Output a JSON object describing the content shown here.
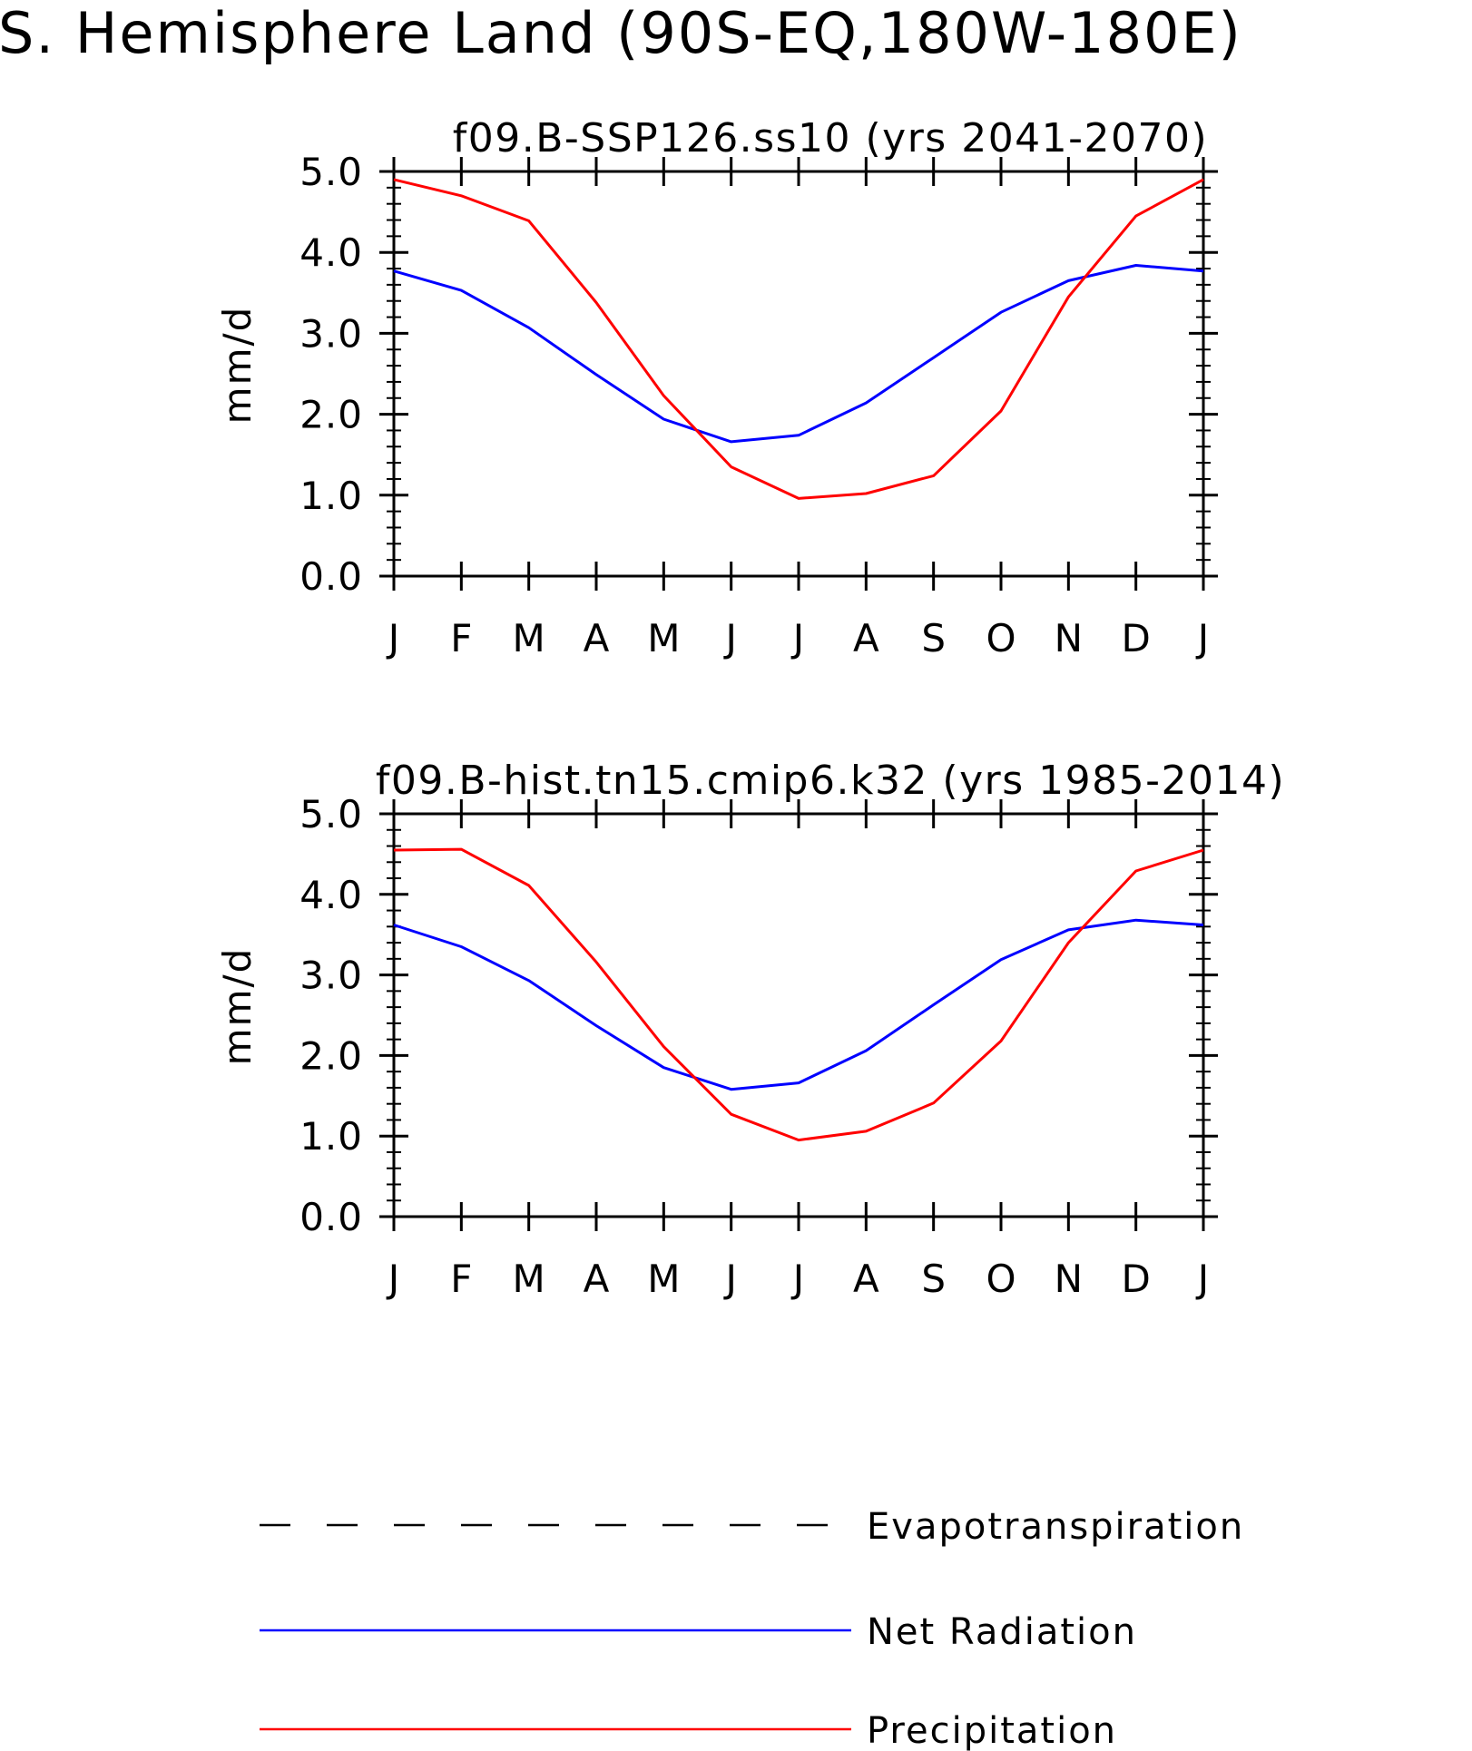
{
  "main_title": "S. Hemisphere Land (90S-EQ,180W-180E)",
  "colors": {
    "net_radiation": "#0000ff",
    "precipitation": "#ff0000",
    "evapotranspiration": "#000000",
    "axis": "#000000"
  },
  "legend": {
    "items": [
      {
        "label": "Evapotranspiration",
        "style": "dashed"
      },
      {
        "label": "Net Radiation",
        "style": "solid"
      },
      {
        "label": "Precipitation",
        "style": "solid"
      }
    ]
  },
  "chart_data": [
    {
      "type": "line",
      "title": "f09.B-SSP126.ss10 (yrs 2041-2070)",
      "ylabel": "mm/d",
      "xlabel": "",
      "categories": [
        "J",
        "F",
        "M",
        "A",
        "M",
        "J",
        "J",
        "A",
        "S",
        "O",
        "N",
        "D",
        "J"
      ],
      "ylim": [
        0,
        5
      ],
      "yticks": [
        "0.0",
        "1.0",
        "2.0",
        "3.0",
        "4.0",
        "5.0"
      ],
      "series": [
        {
          "name": "Net Radiation",
          "values": [
            3.77,
            3.53,
            3.07,
            2.49,
            1.94,
            1.66,
            1.74,
            2.14,
            2.7,
            3.26,
            3.65,
            3.84,
            3.77
          ]
        },
        {
          "name": "Precipitation",
          "values": [
            4.9,
            4.7,
            4.39,
            3.38,
            2.23,
            1.35,
            0.96,
            1.02,
            1.24,
            2.04,
            3.45,
            4.45,
            4.9
          ]
        }
      ]
    },
    {
      "type": "line",
      "title": "f09.B-hist.tn15.cmip6.k32 (yrs 1985-2014)",
      "ylabel": "mm/d",
      "xlabel": "",
      "categories": [
        "J",
        "F",
        "M",
        "A",
        "M",
        "J",
        "J",
        "A",
        "S",
        "O",
        "N",
        "D",
        "J"
      ],
      "ylim": [
        0,
        5
      ],
      "yticks": [
        "0.0",
        "1.0",
        "2.0",
        "3.0",
        "4.0",
        "5.0"
      ],
      "series": [
        {
          "name": "Net Radiation",
          "values": [
            3.62,
            3.35,
            2.93,
            2.37,
            1.85,
            1.58,
            1.66,
            2.06,
            2.63,
            3.19,
            3.56,
            3.68,
            3.62
          ]
        },
        {
          "name": "Precipitation",
          "values": [
            4.55,
            4.56,
            4.11,
            3.16,
            2.11,
            1.27,
            0.95,
            1.06,
            1.41,
            2.18,
            3.4,
            4.29,
            4.55
          ]
        }
      ]
    }
  ]
}
